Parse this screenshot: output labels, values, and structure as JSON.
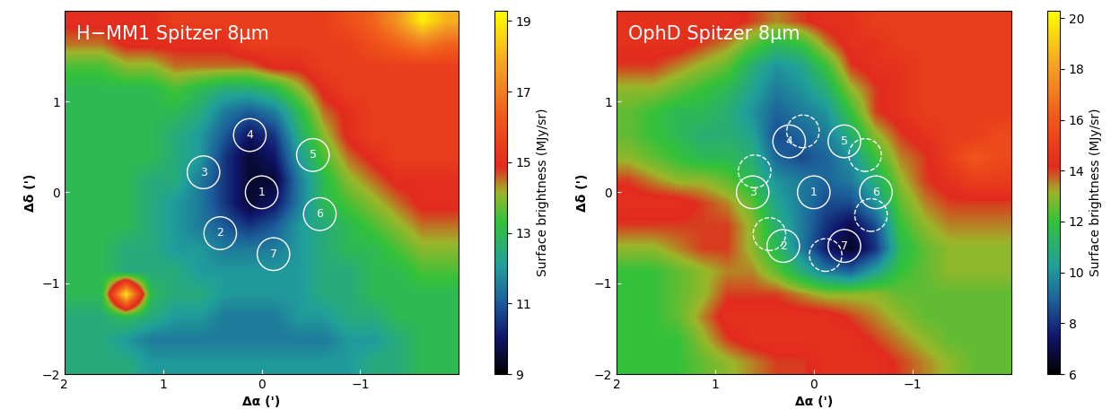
{
  "chart_data": [
    {
      "type": "heatmap",
      "title": "H−MM1 Spitzer 8μm",
      "xlabel": "Δα (')",
      "ylabel": "Δδ (')",
      "xlim": [
        2,
        -2
      ],
      "ylim": [
        -2,
        2
      ],
      "xticks": [
        2,
        1,
        0,
        {
          "value": -1,
          "label": "−1"
        }
      ],
      "yticks": [
        {
          "value": -2,
          "label": "−2"
        },
        {
          "value": -1,
          "label": "−1"
        },
        0,
        1
      ],
      "colorbar_label": "Surface brightness (MJy/sr)",
      "colorbar_range": [
        9,
        19.3
      ],
      "colorbar_ticks": [
        9,
        11,
        13,
        15,
        17,
        19
      ],
      "cells": [
        [
          15,
          15,
          15,
          15,
          15.5,
          15.5,
          15.5,
          15.5,
          15.5,
          15.5,
          15.5,
          16,
          16.5,
          17.5,
          19,
          18
        ],
        [
          14.5,
          14.5,
          15,
          15,
          15,
          15,
          15,
          15.5,
          15.5,
          15.5,
          15.5,
          15.5,
          16,
          16.5,
          17,
          16.5
        ],
        [
          13.5,
          13.5,
          14,
          14,
          14.5,
          14.5,
          14.5,
          14.5,
          15,
          15,
          15.5,
          15.5,
          15.5,
          15.5,
          15.5,
          15.5
        ],
        [
          13,
          13,
          13,
          13,
          13.5,
          13,
          12.5,
          12.5,
          13,
          14,
          15,
          15.5,
          15.5,
          15.5,
          15.5,
          15.5
        ],
        [
          13,
          13,
          13,
          13,
          13,
          12.5,
          11.5,
          11,
          11.5,
          13,
          14.5,
          15,
          15.5,
          15.5,
          15.5,
          15.5
        ],
        [
          13,
          13,
          13,
          13,
          12.5,
          12,
          11,
          10,
          10.5,
          12.5,
          14,
          15,
          15.5,
          15.5,
          15.5,
          15.5
        ],
        [
          13,
          13,
          13,
          13,
          12.5,
          12,
          10.5,
          9.5,
          10,
          12,
          13.5,
          14.5,
          15,
          15.5,
          15.5,
          15.5
        ],
        [
          13,
          13,
          13,
          12.5,
          12.5,
          11.5,
          10.5,
          9.5,
          9.5,
          11.5,
          13,
          14,
          14.5,
          15,
          15,
          15
        ],
        [
          13,
          13,
          13,
          12.5,
          12,
          11.5,
          10.5,
          9.5,
          10,
          11.5,
          13,
          13.5,
          14,
          14.5,
          15,
          15
        ],
        [
          13,
          13,
          13,
          12.5,
          12,
          11.5,
          11,
          10.5,
          11,
          12,
          12.5,
          13,
          13.5,
          14,
          14.5,
          14.5
        ],
        [
          13,
          13,
          12.5,
          12.5,
          12,
          12,
          11.5,
          11.5,
          11.5,
          12,
          12.5,
          13,
          13,
          13.5,
          14,
          14
        ],
        [
          13,
          13,
          12.5,
          12.5,
          12.5,
          12,
          12,
          12,
          12,
          12,
          12.5,
          12.5,
          13,
          13,
          13.5,
          13.5
        ],
        [
          13,
          13,
          19,
          13,
          12.5,
          12.5,
          12,
          12,
          12,
          12,
          12.5,
          12.5,
          13,
          13,
          13,
          13
        ],
        [
          12.5,
          12.5,
          13,
          12.5,
          12,
          12,
          11.5,
          11.5,
          11.5,
          12,
          12,
          12.5,
          12.5,
          13,
          13,
          13
        ],
        [
          12.5,
          12.5,
          12,
          11.5,
          11.5,
          11.5,
          11.5,
          11.5,
          11.5,
          11.5,
          11.5,
          12,
          12,
          12.5,
          13,
          13
        ],
        [
          12.5,
          12.5,
          12.5,
          12,
          12,
          12,
          12,
          12,
          12,
          12,
          12,
          12,
          12.5,
          12.5,
          13,
          13
        ]
      ],
      "circles": [
        {
          "label": "1",
          "x": 0,
          "y": 0
        },
        {
          "label": "2",
          "x": 0.42,
          "y": -0.45
        },
        {
          "label": "3",
          "x": 0.59,
          "y": 0.22
        },
        {
          "label": "4",
          "x": 0.12,
          "y": 0.63
        },
        {
          "label": "5",
          "x": -0.52,
          "y": 0.41
        },
        {
          "label": "6",
          "x": -0.59,
          "y": -0.24
        },
        {
          "label": "7",
          "x": -0.12,
          "y": -0.68
        }
      ],
      "dashed_circles": []
    },
    {
      "type": "heatmap",
      "title": "OphD Spitzer 8μm",
      "xlabel": "Δα (')",
      "ylabel": "Δδ (')",
      "xlim": [
        2,
        -2
      ],
      "ylim": [
        -2,
        2
      ],
      "xticks": [
        2,
        1,
        0,
        {
          "value": -1,
          "label": "−1"
        }
      ],
      "yticks": [
        {
          "value": -2,
          "label": "−2"
        },
        {
          "value": -1,
          "label": "−1"
        },
        0,
        1
      ],
      "colorbar_label": "Surface brightness (MJy/sr)",
      "colorbar_range": [
        6,
        20.3
      ],
      "colorbar_ticks": [
        6,
        8,
        10,
        12,
        14,
        16,
        18,
        20
      ],
      "cells": [
        [
          14.5,
          14.5,
          14.5,
          14.5,
          14.5,
          14,
          13.5,
          14,
          14.5,
          14.5,
          15,
          15,
          15,
          15,
          15,
          15
        ],
        [
          14.5,
          14.5,
          14.5,
          14,
          13.5,
          12.5,
          11.5,
          12,
          13.5,
          14.5,
          14.5,
          15,
          15,
          15,
          15,
          15
        ],
        [
          14,
          14,
          13.5,
          13,
          12.5,
          11,
          10,
          10.5,
          12,
          14,
          14.5,
          14.5,
          15,
          15,
          15,
          15
        ],
        [
          13,
          13,
          12.5,
          12,
          11.5,
          10.5,
          9.5,
          10,
          11,
          13,
          14,
          14.5,
          15,
          15,
          15,
          15
        ],
        [
          12.5,
          12,
          11.5,
          11.5,
          11,
          10,
          9,
          9.5,
          10,
          12,
          14,
          14.5,
          15,
          15,
          15,
          15
        ],
        [
          12.5,
          12,
          11.5,
          11,
          11,
          10.5,
          8.5,
          9,
          9.5,
          11,
          13,
          14,
          14.5,
          15,
          15,
          15.5
        ],
        [
          13,
          12.5,
          12,
          11.5,
          11.5,
          11,
          9,
          8.5,
          9,
          10,
          12,
          13.5,
          14,
          15,
          16,
          15.5
        ],
        [
          14,
          13.5,
          13,
          13,
          12.5,
          11.5,
          10,
          9.5,
          9,
          9.5,
          11,
          13,
          14,
          14.5,
          15,
          15
        ],
        [
          14.5,
          14.5,
          14.5,
          14,
          13.5,
          12.5,
          10.5,
          9.5,
          8.5,
          8.5,
          10,
          12.5,
          13.5,
          14,
          14,
          14
        ],
        [
          14,
          14,
          14,
          14,
          14,
          13,
          11,
          9.5,
          8,
          7,
          8.5,
          12,
          13,
          13.5,
          13.5,
          13.5
        ],
        [
          13,
          13,
          13.5,
          14,
          14,
          13,
          11.5,
          9.5,
          7.5,
          6.5,
          8,
          11.5,
          12.5,
          13,
          13,
          13
        ],
        [
          12,
          12,
          12.5,
          13,
          13.5,
          13.5,
          12.5,
          11,
          9.5,
          9,
          10.5,
          12,
          12.5,
          13,
          13,
          13
        ],
        [
          12,
          12,
          12.5,
          13,
          14,
          14,
          14,
          13.5,
          13,
          13,
          13,
          12.5,
          12.5,
          12.5,
          12.5,
          12.5
        ],
        [
          12,
          12,
          12.5,
          13.5,
          14.5,
          14.5,
          14.5,
          14.5,
          14.5,
          14,
          13.5,
          13,
          12.5,
          12.5,
          12.5,
          12.5
        ],
        [
          12,
          12,
          12,
          13,
          14,
          14.5,
          14.5,
          14.5,
          14.5,
          14.5,
          14,
          13.5,
          13,
          12.5,
          12.5,
          12.5
        ],
        [
          12,
          12,
          12,
          12.5,
          13,
          13.5,
          14,
          14,
          14.5,
          14.5,
          14.5,
          14,
          13.5,
          13,
          12.5,
          12.5
        ]
      ],
      "circles": [
        {
          "label": "1",
          "x": 0,
          "y": 0
        },
        {
          "label": "2",
          "x": 0.31,
          "y": -0.59
        },
        {
          "label": "3",
          "x": 0.62,
          "y": 0
        },
        {
          "label": "4",
          "x": 0.25,
          "y": 0.56
        },
        {
          "label": "5",
          "x": -0.31,
          "y": 0.56
        },
        {
          "label": "6",
          "x": -0.63,
          "y": 0
        },
        {
          "label": "7",
          "x": -0.31,
          "y": -0.59
        }
      ],
      "dashed_circles": [
        {
          "x": 0.11,
          "y": 0.67
        },
        {
          "x": -0.52,
          "y": 0.41
        },
        {
          "x": 0.6,
          "y": 0.23
        },
        {
          "x": -0.58,
          "y": -0.25
        },
        {
          "x": 0.45,
          "y": -0.46
        },
        {
          "x": -0.12,
          "y": -0.69
        }
      ]
    }
  ]
}
